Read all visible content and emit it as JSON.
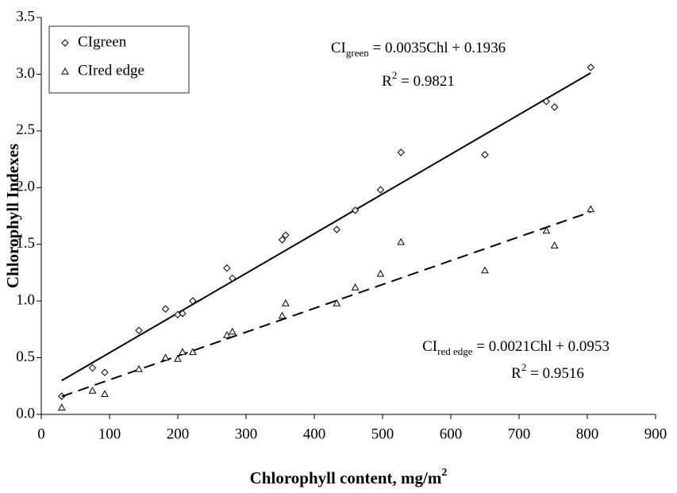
{
  "chart_data": {
    "type": "scatter",
    "x_label": {
      "text": "Chlorophyll content, mg/m",
      "sup": "2"
    },
    "y_label": "Chlorophyll Indexes",
    "xlim": [
      0,
      900
    ],
    "xticks": [
      0,
      100,
      200,
      300,
      400,
      500,
      600,
      700,
      800,
      900
    ],
    "ylim": [
      0,
      3.5
    ],
    "yticks": [
      {
        "value": 0,
        "label": "0.0"
      },
      0.5,
      {
        "value": 1,
        "label": "1.0"
      },
      1.5,
      {
        "value": 2,
        "label": "2.0"
      },
      2.5,
      {
        "value": 3,
        "label": "3.0"
      },
      3.5
    ],
    "grid": false,
    "legend": "upper left",
    "x": [
      30,
      75,
      93,
      143,
      182,
      200,
      207,
      222,
      272,
      280,
      353,
      358,
      433,
      460,
      497,
      527,
      650,
      740,
      752,
      805
    ],
    "series": [
      {
        "name": "CIgreen",
        "color": "#000000",
        "marker": "diamond",
        "values": [
          0.16,
          0.41,
          0.37,
          0.74,
          0.93,
          0.88,
          0.89,
          1.0,
          1.29,
          1.2,
          1.54,
          1.58,
          1.63,
          1.8,
          1.98,
          2.31,
          2.29,
          2.76,
          2.71,
          3.06
        ],
        "trendline": {
          "slope": 0.0035,
          "intercept": 0.1936,
          "line_style": "solid"
        },
        "equation": {
          "lhs": "CI",
          "sub": "green",
          "rhs": " = 0.0035Chl + 0.1936"
        },
        "r2": {
          "lhs": "R",
          "sup": "2",
          "rhs": " = 0.9821"
        }
      },
      {
        "name": "CIred edge",
        "color": "#000000",
        "marker": "triangle",
        "values": [
          0.06,
          0.21,
          0.18,
          0.4,
          0.5,
          0.49,
          0.55,
          0.55,
          0.7,
          0.73,
          0.87,
          0.98,
          0.98,
          1.12,
          1.24,
          1.52,
          1.27,
          1.62,
          1.49,
          1.81
        ],
        "trendline": {
          "slope": 0.0021,
          "intercept": 0.0953,
          "line_style": "dashed"
        },
        "equation": {
          "lhs": "CI",
          "sub": "red edge",
          "rhs": " = 0.0021Chl + 0.0953"
        },
        "r2": {
          "lhs": "R",
          "sup": "2",
          "rhs": " = 0.9516"
        }
      }
    ]
  }
}
